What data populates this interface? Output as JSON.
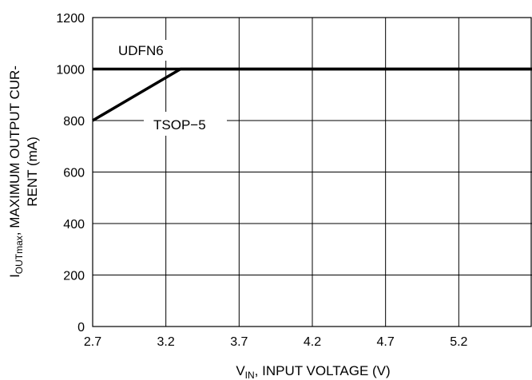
{
  "chart_data": {
    "type": "line",
    "xlabel_main": "V",
    "xlabel_sub": "IN",
    "xlabel_rest": ", INPUT VOLTAGE (V)",
    "ylabel_main": "I",
    "ylabel_sub": "OUTmax",
    "ylabel_rest": ", MAXIMUM OUTPUT CUR-",
    "ylabel_line2": "RENT (mA)",
    "xlim": [
      2.7,
      5.7
    ],
    "ylim": [
      0,
      1200
    ],
    "x_ticks": [
      2.7,
      3.2,
      3.7,
      4.2,
      4.7,
      5.2
    ],
    "x_tick_labels": [
      "2.7",
      "3.2",
      "3.7",
      "4.2",
      "4.7",
      "5.2"
    ],
    "y_ticks": [
      0,
      200,
      400,
      600,
      800,
      1000,
      1200
    ],
    "y_tick_labels": [
      "0",
      "200",
      "400",
      "600",
      "800",
      "1000",
      "1200"
    ],
    "grid": true,
    "series": [
      {
        "name": "UDFN6",
        "x": [
          2.7,
          5.7
        ],
        "y": [
          1000,
          1000
        ]
      },
      {
        "name": "TSOP−5",
        "x": [
          2.7,
          3.3,
          5.7
        ],
        "y": [
          800,
          1000,
          1000
        ]
      }
    ]
  }
}
